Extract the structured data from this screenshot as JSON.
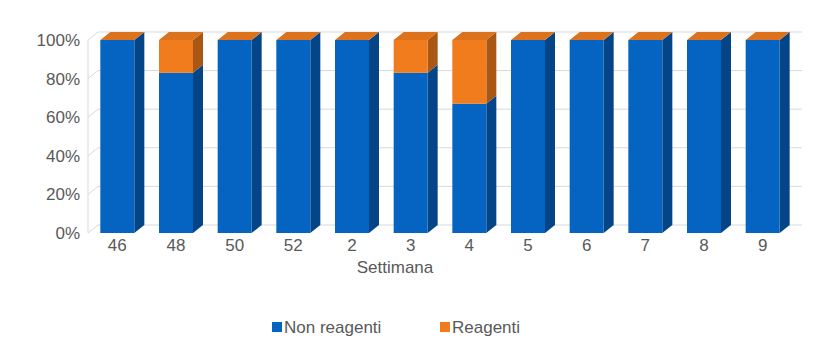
{
  "chart_data": {
    "type": "bar",
    "stacked": true,
    "grid": true,
    "legend": "bottom",
    "x_label": "Settimana",
    "categories": [
      "46",
      "48",
      "50",
      "52",
      "2",
      "3",
      "4",
      "5",
      "6",
      "7",
      "8",
      "9"
    ],
    "series": [
      {
        "name": "Non reagenti",
        "color": "#0563c1",
        "values": [
          100,
          83,
          100,
          100,
          100,
          83,
          67,
          100,
          100,
          100,
          100,
          100
        ]
      },
      {
        "name": "Reagenti",
        "color": "#f07c1e",
        "values": [
          0,
          17,
          0,
          0,
          0,
          17,
          33,
          0,
          0,
          0,
          0,
          0
        ]
      }
    ],
    "ylim": [
      0,
      100
    ],
    "yticks": [
      {
        "value": 0,
        "label": "0%"
      },
      {
        "value": 20,
        "label": "20%"
      },
      {
        "value": 40,
        "label": "40%"
      },
      {
        "value": 60,
        "label": "60%"
      },
      {
        "value": 80,
        "label": "80%"
      },
      {
        "value": 100,
        "label": "100%"
      }
    ]
  }
}
